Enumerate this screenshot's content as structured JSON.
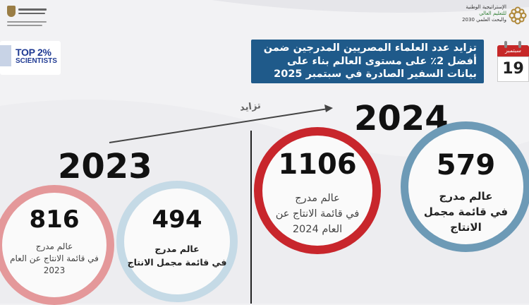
{
  "header": {
    "strategy_lines": [
      "الإستراتيجية الوطنية",
      "للتعليم العالي",
      "والبحث العلمي 2030"
    ],
    "top2_main": "TOP 2%",
    "top2_sub": "SCIENTISTS"
  },
  "title": {
    "lines": [
      "تزايد عدد العلماء المصريين المدرجين ضمن",
      "أفضل 2٪ على مستوى العالم بناء على",
      "بيانات السفير الصادرة في سبتمبر 2025"
    ]
  },
  "calendar": {
    "month": "سبتمبر",
    "day": "19"
  },
  "arrow_label": "تزايد",
  "years": {
    "left": "2023",
    "right": "2024"
  },
  "stats_2024": {
    "production": {
      "value": "1106",
      "caption": [
        "عالم مدرج",
        "في قائمة الانتاج عن",
        "العام 2024"
      ]
    },
    "career": {
      "value": "579",
      "caption": [
        "عالم مدرج",
        "في قائمة مجمل",
        "الانتاج"
      ]
    }
  },
  "stats_2023": {
    "production": {
      "value": "816",
      "caption": [
        "عالم مدرج",
        "في قائمة الانتاج عن العام",
        "2023"
      ]
    },
    "career": {
      "value": "494",
      "caption": [
        "عالم مدرج",
        "في قائمة مجمل الانتاج"
      ]
    }
  },
  "colors": {
    "title_bg": "#1f5a8a",
    "ring_red": "#c8262c",
    "ring_blue": "#6d9ab6",
    "ring_pink": "#e4989a",
    "ring_light_blue": "#c5dae6"
  }
}
